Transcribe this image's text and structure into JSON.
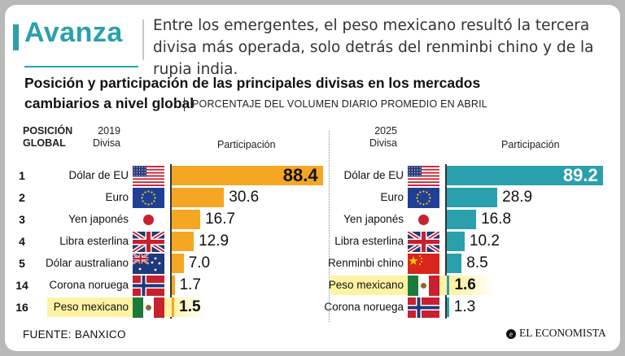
{
  "header": {
    "title": "Avanza",
    "text": "Entre los emergentes, el peso mexicano resultó la tercera divisa más operada, solo detrás del renminbi chino y de la rupia india."
  },
  "chart_data": {
    "type": "bar",
    "title_line1": "Posición y participación de las principales divisas en los mercados",
    "title_line2": "cambiarios a nivel global",
    "subtitle": "PORCENTAJE DEL VOLUMEN DIARIO PROMEDIO EN ABRIL",
    "xlabel": "Participación",
    "position_header": [
      "POSICIÓN",
      "GLOBAL"
    ],
    "panels": [
      {
        "year": "2019",
        "divisa_label": "Divisa",
        "xlim": [
          0,
          100
        ],
        "bar_color": "#f5a623",
        "rows": [
          {
            "position": "1",
            "currency": "Dólar de EU",
            "flag": "us-flag-icon",
            "value": 88.4
          },
          {
            "position": "2",
            "currency": "Euro",
            "flag": "eu-flag-icon",
            "value": 30.6
          },
          {
            "position": "3",
            "currency": "Yen japonés",
            "flag": "japan-flag-icon",
            "value": 16.7
          },
          {
            "position": "4",
            "currency": "Libra esterlina",
            "flag": "uk-flag-icon",
            "value": 12.9
          },
          {
            "position": "5",
            "currency": "Dólar australiano",
            "flag": "australia-flag-icon",
            "value": 7.0
          },
          {
            "position": "14",
            "currency": "Corona noruega",
            "flag": "norway-flag-icon",
            "value": 1.7
          },
          {
            "position": "16",
            "currency": "Peso mexicano",
            "flag": "mexico-flag-icon",
            "value": 1.5,
            "highlight": true
          }
        ]
      },
      {
        "year": "2025",
        "divisa_label": "Divisa",
        "xlim": [
          0,
          100
        ],
        "bar_color": "#2aa0ad",
        "rows": [
          {
            "currency": "Dólar de EU",
            "flag": "us-flag-icon",
            "value": 89.2
          },
          {
            "currency": "Euro",
            "flag": "eu-flag-icon",
            "value": 28.9
          },
          {
            "currency": "Yen japonés",
            "flag": "japan-flag-icon",
            "value": 16.8
          },
          {
            "currency": "Libra esterlina",
            "flag": "uk-flag-icon",
            "value": 10.2
          },
          {
            "currency": "Renminbi chino",
            "flag": "china-flag-icon",
            "value": 8.5
          },
          {
            "currency": "Peso mexicano",
            "flag": "mexico-flag-icon",
            "value": 1.6,
            "highlight": true
          },
          {
            "currency": "Corona noruega",
            "flag": "norway-flag-icon",
            "value": 1.3
          }
        ]
      }
    ]
  },
  "footer": {
    "source": "FUENTE: BANXICO",
    "logo": "EL ECONOMISTA"
  },
  "colors": {
    "accent": "#2aa0ad",
    "orange": "#f5a623",
    "highlight": "#fff3a3"
  }
}
